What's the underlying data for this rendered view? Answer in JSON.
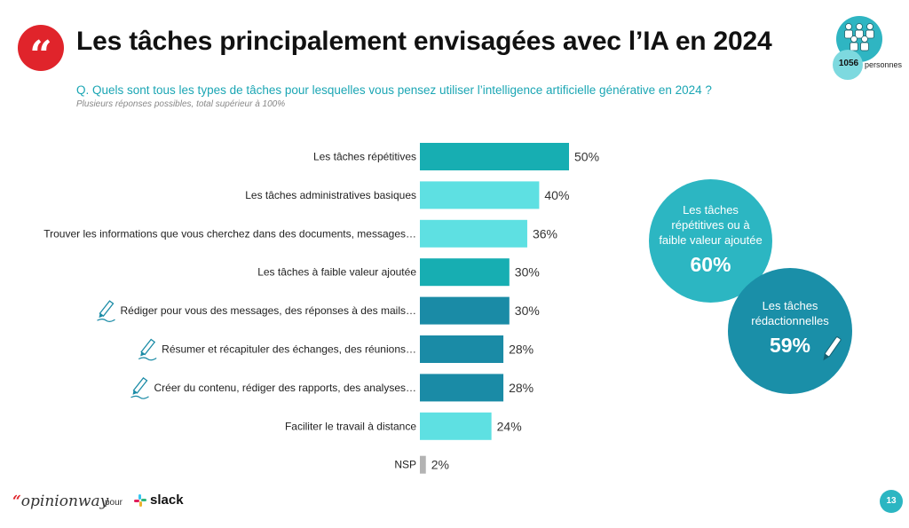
{
  "header": {
    "quote_glyph": "“",
    "title": "Les tâches principalement envisagées avec l’IA en 2024"
  },
  "audience": {
    "count": "1056",
    "unit": "personnes"
  },
  "question": "Q. Quels sont tous les types de tâches pour lesquelles vous pensez utiliser l’intelligence artificielle générative en 2024 ?",
  "note": "Plusieurs réponses possibles, total supérieur à 100%",
  "colors": {
    "teal_dark": "#17aeb2",
    "teal_light": "#5ee0e2",
    "blue_write": "#1a8ba6",
    "gray_nsp": "#b3b3b3",
    "brand_red": "#e0242b"
  },
  "chart_data": {
    "type": "bar",
    "orientation": "horizontal",
    "title": "Les tâches principalement envisagées avec l’IA en 2024",
    "unit": "%",
    "xlim": [
      0,
      100
    ],
    "categories": [
      "Les tâches répétitives",
      "Les tâches administratives basiques",
      "Trouver les informations que vous cherchez dans des documents, messages…",
      "Les tâches à faible valeur ajoutée",
      "Rédiger pour vous des messages, des réponses à des mails…",
      "Résumer et récapituler des échanges, des réunions…",
      "Créer du contenu, rédiger des rapports, des analyses…",
      "Faciliter le travail à distance",
      "NSP"
    ],
    "values": [
      50,
      40,
      36,
      30,
      30,
      28,
      28,
      24,
      2
    ],
    "labels": [
      "50%",
      "40%",
      "36%",
      "30%",
      "30%",
      "28%",
      "28%",
      "24%",
      "2%"
    ],
    "group": [
      "repetitive",
      "other",
      "other",
      "repetitive",
      "writing",
      "writing",
      "writing",
      "other",
      "nsp"
    ],
    "pen_icon": [
      false,
      false,
      false,
      false,
      true,
      true,
      true,
      false,
      false
    ]
  },
  "bubbles": [
    {
      "text": "Les tâches répétitives ou à faible valeur ajoutée",
      "line1": "Les tâches",
      "line2": "répétitives ou à",
      "line3": "faible valeur ajoutée",
      "pct": "60%"
    },
    {
      "text": "Les tâches rédactionnelles",
      "line1": "Les tâches",
      "line2": "rédactionnelles",
      "pct": "59%"
    }
  ],
  "footer": {
    "brand_quote": "“",
    "brand": "opinionway",
    "pour": "pour",
    "partner": "slack",
    "page": "13"
  }
}
